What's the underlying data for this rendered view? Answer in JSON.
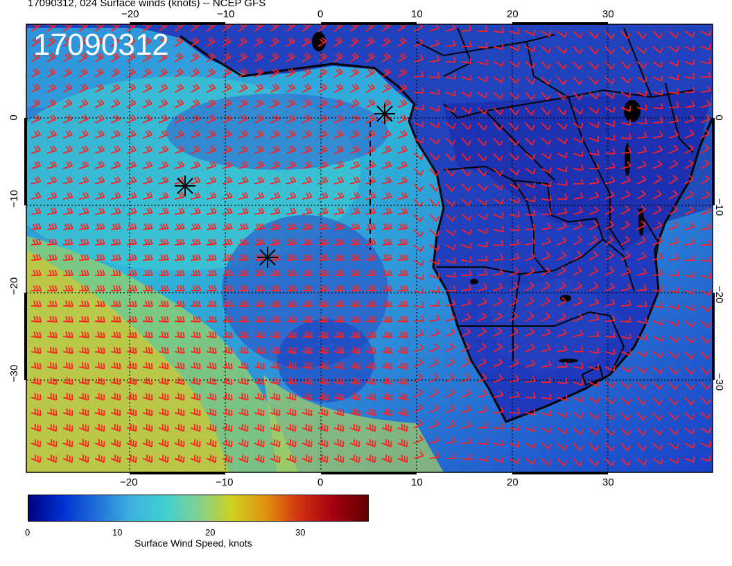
{
  "title": "17090312, 024 Surface winds (knots) -- NCEP GFS",
  "stamp": "17090312",
  "x_ticks_bottom": [
    "−20",
    "−10",
    "0",
    "10",
    "20",
    "30"
  ],
  "x_ticks_top": [
    "−20",
    "−10",
    "0",
    "10",
    "20",
    "30"
  ],
  "y_ticks_left": [
    "0",
    "−10",
    "−20",
    "−30"
  ],
  "y_ticks_right": [
    "0",
    "−10",
    "−20",
    "−30"
  ],
  "colorbar": {
    "label": "Surface Wind Speed, knots",
    "ticks": [
      "0",
      "10",
      "20",
      "30"
    ],
    "range": [
      0,
      38
    ],
    "colors": [
      "#000080",
      "#0030d0",
      "#1e6fd8",
      "#3fb0e0",
      "#40d0d0",
      "#80d090",
      "#d0d020",
      "#e09010",
      "#d03010",
      "#a00010",
      "#600000"
    ]
  },
  "map": {
    "region": "South Atlantic and southern Africa",
    "lon_range": [
      -31,
      41
    ],
    "lat_range": [
      -40,
      9
    ],
    "barb_color": "#ff2020",
    "storm_markers": [
      "*",
      "*",
      "*"
    ]
  }
}
